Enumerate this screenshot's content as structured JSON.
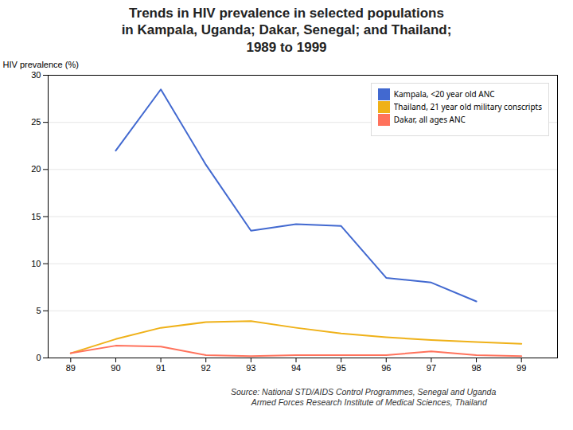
{
  "chart_data": {
    "type": "line",
    "title": "Trends in HIV prevalence in selected populations\nin Kampala, Uganda; Dakar, Senegal; and Thailand;\n1989 to 1999",
    "ylabel": "HIV prevalence (%)",
    "caption": "Source: National STD/AIDS Control Programmes, Senegal and Uganda\n         Armed Forces Research Institute of Medical Sciences, Thailand",
    "x": [
      89,
      90,
      91,
      92,
      93,
      94,
      95,
      96,
      97,
      98,
      99
    ],
    "series": [
      {
        "name": "Kampala, <20 year old ANC",
        "values": [
          null,
          22,
          28.5,
          20.5,
          13.5,
          14.2,
          14.0,
          8.5,
          8.0,
          6.0,
          null
        ]
      },
      {
        "name": "Thailand, 21 year old military conscripts",
        "values": [
          0.5,
          2.0,
          3.2,
          3.8,
          3.9,
          3.2,
          2.6,
          2.2,
          1.9,
          1.7,
          1.5
        ]
      },
      {
        "name": "Dakar, all ages ANC",
        "values": [
          0.5,
          1.3,
          1.2,
          0.3,
          0.2,
          0.3,
          0.3,
          0.3,
          0.7,
          0.3,
          0.2
        ]
      }
    ],
    "xlim": [
      88.5,
      99.8
    ],
    "xticks": [
      89,
      90,
      91,
      92,
      93,
      94,
      95,
      96,
      97,
      98,
      99
    ],
    "ylim": [
      0,
      30
    ],
    "yticks": [
      0,
      5,
      10,
      15,
      20,
      25,
      30
    ],
    "grid": true,
    "legend": "upper right"
  }
}
